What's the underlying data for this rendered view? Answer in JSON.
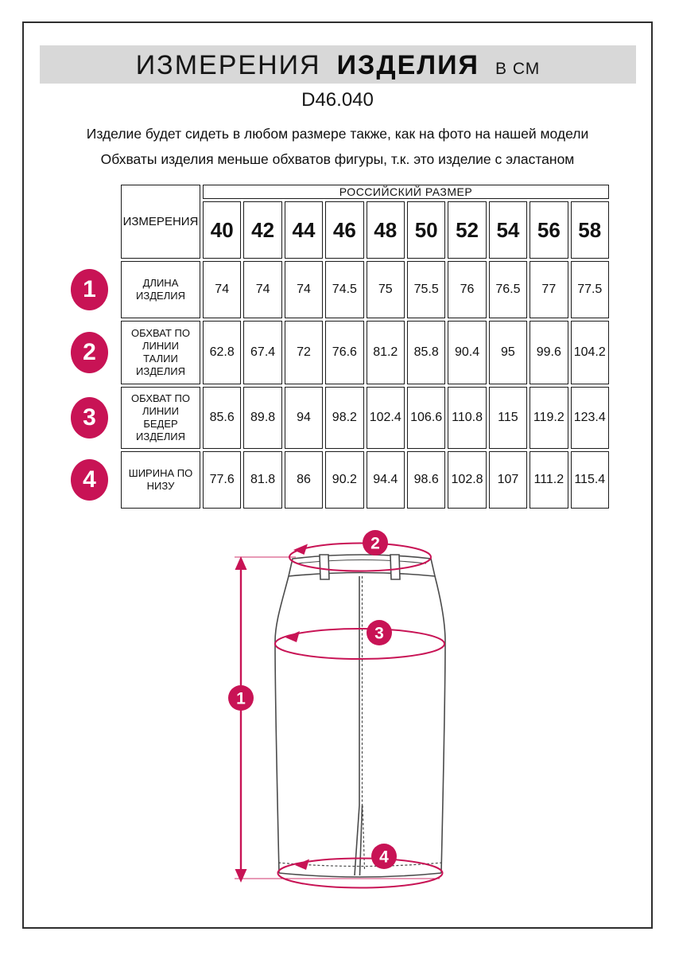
{
  "header": {
    "title_word1": "ИЗМЕРЕНИЯ",
    "title_word2": "ИЗДЕЛИЯ",
    "title_unit": "В СМ",
    "model": "D46.040",
    "description_line1": "Изделие будет сидеть в любом размере также, как на фото на нашей модели",
    "description_line2": "Обхваты изделия меньше обхватов фигуры, т.к. это изделие с эластаном"
  },
  "table": {
    "measurements_header": "ИЗМЕРЕНИЯ",
    "size_group_header": "РОССИЙСКИЙ РАЗМЕР",
    "sizes": [
      "40",
      "42",
      "44",
      "46",
      "48",
      "50",
      "52",
      "54",
      "56",
      "58"
    ],
    "rows": [
      {
        "marker": "1",
        "label": "ДЛИНА\nИЗДЕЛИЯ",
        "values": [
          "74",
          "74",
          "74",
          "74.5",
          "75",
          "75.5",
          "76",
          "76.5",
          "77",
          "77.5"
        ]
      },
      {
        "marker": "2",
        "label": "ОБХВАТ ПО\nЛИНИИ\nТАЛИИ\nИЗДЕЛИЯ",
        "values": [
          "62.8",
          "67.4",
          "72",
          "76.6",
          "81.2",
          "85.8",
          "90.4",
          "95",
          "99.6",
          "104.2"
        ]
      },
      {
        "marker": "3",
        "label": "ОБХВАТ ПО\nЛИНИИ\nБЕДЕР\nИЗДЕЛИЯ",
        "values": [
          "85.6",
          "89.8",
          "94",
          "98.2",
          "102.4",
          "106.6",
          "110.8",
          "115",
          "119.2",
          "123.4"
        ]
      },
      {
        "marker": "4",
        "label": "ШИРИНА ПО\nНИЗУ",
        "values": [
          "77.6",
          "81.8",
          "86",
          "90.2",
          "94.4",
          "98.6",
          "102.8",
          "107",
          "111.2",
          "115.4"
        ]
      }
    ]
  },
  "drawing": {
    "markers": [
      {
        "number": "1"
      },
      {
        "number": "2"
      },
      {
        "number": "3"
      },
      {
        "number": "4"
      }
    ]
  },
  "colors": {
    "accent": "#c81355",
    "title_bar": "#d8d8d8",
    "outline": "#4b4b4b"
  }
}
